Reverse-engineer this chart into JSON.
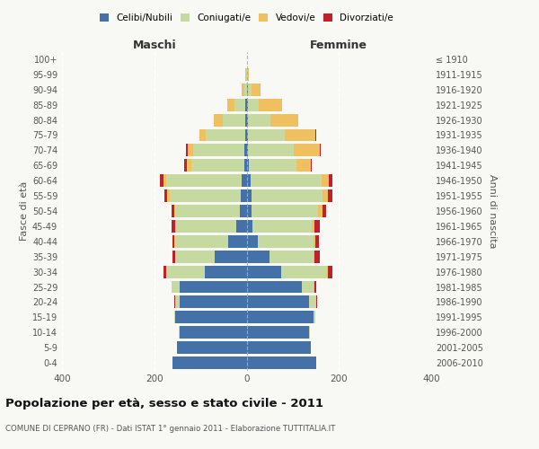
{
  "age_groups": [
    "0-4",
    "5-9",
    "10-14",
    "15-19",
    "20-24",
    "25-29",
    "30-34",
    "35-39",
    "40-44",
    "45-49",
    "50-54",
    "55-59",
    "60-64",
    "65-69",
    "70-74",
    "75-79",
    "80-84",
    "85-89",
    "90-94",
    "95-99",
    "100+"
  ],
  "birth_years": [
    "2006-2010",
    "2001-2005",
    "1996-2000",
    "1991-1995",
    "1986-1990",
    "1981-1985",
    "1976-1980",
    "1971-1975",
    "1966-1970",
    "1961-1965",
    "1956-1960",
    "1951-1955",
    "1946-1950",
    "1941-1945",
    "1936-1940",
    "1931-1935",
    "1926-1930",
    "1921-1925",
    "1916-1920",
    "1911-1915",
    "≤ 1910"
  ],
  "males": {
    "celibi": [
      160,
      150,
      145,
      155,
      145,
      145,
      90,
      70,
      40,
      22,
      15,
      12,
      10,
      5,
      5,
      3,
      2,
      2,
      0,
      0,
      0
    ],
    "coniugati": [
      0,
      0,
      2,
      2,
      10,
      18,
      85,
      85,
      115,
      130,
      140,
      155,
      165,
      115,
      110,
      85,
      50,
      25,
      5,
      1,
      0
    ],
    "vedovi": [
      0,
      0,
      0,
      0,
      0,
      0,
      0,
      0,
      1,
      2,
      2,
      5,
      5,
      10,
      12,
      15,
      20,
      15,
      5,
      1,
      0
    ],
    "divorziati": [
      0,
      0,
      0,
      0,
      2,
      0,
      5,
      5,
      5,
      8,
      5,
      7,
      8,
      5,
      5,
      0,
      0,
      0,
      0,
      0,
      0
    ]
  },
  "females": {
    "nubili": [
      150,
      140,
      135,
      145,
      135,
      120,
      75,
      50,
      25,
      12,
      10,
      10,
      8,
      4,
      3,
      3,
      2,
      2,
      2,
      0,
      0
    ],
    "coniugate": [
      0,
      0,
      2,
      3,
      15,
      25,
      100,
      95,
      120,
      130,
      145,
      155,
      155,
      105,
      100,
      80,
      50,
      25,
      8,
      2,
      0
    ],
    "vedove": [
      0,
      0,
      0,
      0,
      1,
      2,
      2,
      2,
      3,
      5,
      10,
      12,
      15,
      30,
      55,
      65,
      60,
      50,
      20,
      3,
      0
    ],
    "divorziate": [
      0,
      0,
      0,
      0,
      2,
      3,
      8,
      12,
      8,
      12,
      8,
      8,
      8,
      2,
      2,
      2,
      0,
      0,
      0,
      0,
      0
    ]
  },
  "colors": {
    "celibi": "#4472a8",
    "coniugati": "#c5d9a0",
    "vedovi": "#f0c060",
    "divorziati": "#c0202a"
  },
  "xlim": 400,
  "title": "Popolazione per età, sesso e stato civile - 2011",
  "subtitle": "COMUNE DI CEPRANO (FR) - Dati ISTAT 1° gennaio 2011 - Elaborazione TUTTITALIA.IT",
  "ylabel_left": "Fasce di età",
  "ylabel_right": "Anni di nascita",
  "xlabel_maschi": "Maschi",
  "xlabel_femmine": "Femmine",
  "bg_color": "#f8f8f5",
  "plot_bg": "#f8f8f5"
}
